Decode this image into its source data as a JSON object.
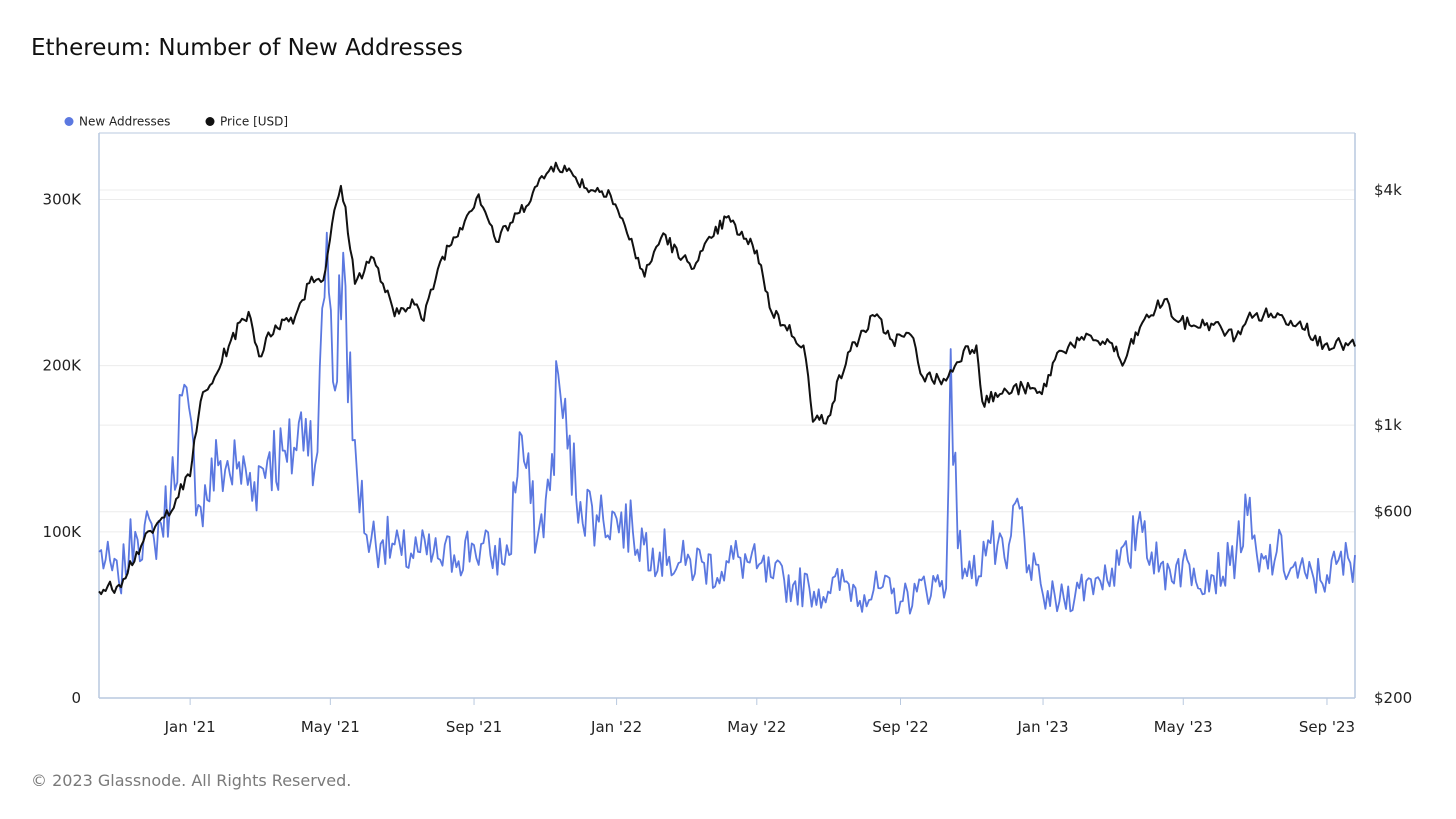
{
  "title": "Ethereum: Number of New Addresses",
  "footer": "© 2023 Glassnode. All Rights Reserved.",
  "colors": {
    "addresses": "#5b78e0",
    "price": "#111111",
    "grid": "#ececec",
    "axis": "#b9c9df"
  },
  "chart_data": {
    "type": "line",
    "title": "Ethereum: Number of New Addresses",
    "legend": [
      {
        "name": "New Addresses",
        "color": "#5b78e0"
      },
      {
        "name": "Price [USD]",
        "color": "#111111"
      }
    ],
    "x_ticks": [
      "Jan '21",
      "May '21",
      "Sep '21",
      "Jan '22",
      "May '22",
      "Sep '22",
      "Jan '23",
      "May '23",
      "Sep '23"
    ],
    "y_left_ticks": [
      "0",
      "100K",
      "200K",
      "300K"
    ],
    "y_left_range": [
      0,
      340000
    ],
    "y_right_ticks": [
      "$200",
      "$600",
      "$1k",
      "$4k"
    ],
    "y_right_scale": "log",
    "y_right_range": [
      200,
      5600
    ],
    "x_range": [
      "2020-10-15",
      "2023-09-25"
    ],
    "series": [
      {
        "name": "New Addresses",
        "axis": "left",
        "points": [
          [
            "2020-10-15",
            88000
          ],
          [
            "2020-11-01",
            70000
          ],
          [
            "2020-11-15",
            100000
          ],
          [
            "2020-12-01",
            96000
          ],
          [
            "2020-12-15",
            118000
          ],
          [
            "2020-12-25",
            182000
          ],
          [
            "2021-01-10",
            115000
          ],
          [
            "2021-01-25",
            140000
          ],
          [
            "2021-02-10",
            138000
          ],
          [
            "2021-02-25",
            130000
          ],
          [
            "2021-03-10",
            148000
          ],
          [
            "2021-03-25",
            142000
          ],
          [
            "2021-04-10",
            168000
          ],
          [
            "2021-04-20",
            148000
          ],
          [
            "2021-04-28",
            280000
          ],
          [
            "2021-05-05",
            185000
          ],
          [
            "2021-05-12",
            268000
          ],
          [
            "2021-05-20",
            155000
          ],
          [
            "2021-06-01",
            98000
          ],
          [
            "2021-06-15",
            95000
          ],
          [
            "2021-07-01",
            86000
          ],
          [
            "2021-07-15",
            88000
          ],
          [
            "2021-08-01",
            84000
          ],
          [
            "2021-08-15",
            86000
          ],
          [
            "2021-09-01",
            92000
          ],
          [
            "2021-09-15",
            86000
          ],
          [
            "2021-10-01",
            86000
          ],
          [
            "2021-10-10",
            160000
          ],
          [
            "2021-10-25",
            95000
          ],
          [
            "2021-11-05",
            125000
          ],
          [
            "2021-11-12",
            195000
          ],
          [
            "2021-11-20",
            150000
          ],
          [
            "2021-12-01",
            118000
          ],
          [
            "2021-12-15",
            110000
          ],
          [
            "2022-01-01",
            108000
          ],
          [
            "2022-01-15",
            100000
          ],
          [
            "2022-02-01",
            90000
          ],
          [
            "2022-02-15",
            85000
          ],
          [
            "2022-03-01",
            80000
          ],
          [
            "2022-03-15",
            82000
          ],
          [
            "2022-04-01",
            76000
          ],
          [
            "2022-04-15",
            85000
          ],
          [
            "2022-05-01",
            78000
          ],
          [
            "2022-05-15",
            72000
          ],
          [
            "2022-06-01",
            68000
          ],
          [
            "2022-06-15",
            66000
          ],
          [
            "2022-07-01",
            64000
          ],
          [
            "2022-07-15",
            70000
          ],
          [
            "2022-08-01",
            62000
          ],
          [
            "2022-08-15",
            66000
          ],
          [
            "2022-09-01",
            58000
          ],
          [
            "2022-09-15",
            64000
          ],
          [
            "2022-10-01",
            70000
          ],
          [
            "2022-10-10",
            66000
          ],
          [
            "2022-10-14",
            210000
          ],
          [
            "2022-10-20",
            90000
          ],
          [
            "2022-11-01",
            72000
          ],
          [
            "2022-11-15",
            95000
          ],
          [
            "2022-12-01",
            78000
          ],
          [
            "2022-12-10",
            120000
          ],
          [
            "2022-12-20",
            80000
          ],
          [
            "2023-01-01",
            62000
          ],
          [
            "2023-01-15",
            58000
          ],
          [
            "2023-02-01",
            66000
          ],
          [
            "2023-02-15",
            72000
          ],
          [
            "2023-03-01",
            78000
          ],
          [
            "2023-03-15",
            82000
          ],
          [
            "2023-03-25",
            112000
          ],
          [
            "2023-04-10",
            76000
          ],
          [
            "2023-04-25",
            80000
          ],
          [
            "2023-05-10",
            78000
          ],
          [
            "2023-05-25",
            74000
          ],
          [
            "2023-06-10",
            80000
          ],
          [
            "2023-06-25",
            110000
          ],
          [
            "2023-07-05",
            76000
          ],
          [
            "2023-07-20",
            88000
          ],
          [
            "2023-08-01",
            78000
          ],
          [
            "2023-08-15",
            72000
          ],
          [
            "2023-09-01",
            74000
          ],
          [
            "2023-09-25",
            86000
          ]
        ]
      },
      {
        "name": "Price [USD]",
        "axis": "right",
        "points": [
          [
            "2020-10-15",
            375
          ],
          [
            "2020-11-01",
            390
          ],
          [
            "2020-11-20",
            490
          ],
          [
            "2020-12-10",
            580
          ],
          [
            "2021-01-01",
            740
          ],
          [
            "2021-01-10",
            1150
          ],
          [
            "2021-01-20",
            1280
          ],
          [
            "2021-02-05",
            1650
          ],
          [
            "2021-02-20",
            1950
          ],
          [
            "2021-03-01",
            1500
          ],
          [
            "2021-03-15",
            1800
          ],
          [
            "2021-04-01",
            1900
          ],
          [
            "2021-04-15",
            2400
          ],
          [
            "2021-04-25",
            2350
          ],
          [
            "2021-05-10",
            4100
          ],
          [
            "2021-05-22",
            2300
          ],
          [
            "2021-06-05",
            2700
          ],
          [
            "2021-06-25",
            1900
          ],
          [
            "2021-07-10",
            2100
          ],
          [
            "2021-07-20",
            1850
          ],
          [
            "2021-08-05",
            2700
          ],
          [
            "2021-08-20",
            3200
          ],
          [
            "2021-09-05",
            3900
          ],
          [
            "2021-09-20",
            2950
          ],
          [
            "2021-10-10",
            3500
          ],
          [
            "2021-10-25",
            4100
          ],
          [
            "2021-11-10",
            4700
          ],
          [
            "2021-11-25",
            4350
          ],
          [
            "2021-12-10",
            4000
          ],
          [
            "2021-12-25",
            4000
          ],
          [
            "2022-01-10",
            3100
          ],
          [
            "2022-01-25",
            2400
          ],
          [
            "2022-02-10",
            3100
          ],
          [
            "2022-02-25",
            2650
          ],
          [
            "2022-03-10",
            2600
          ],
          [
            "2022-03-25",
            3050
          ],
          [
            "2022-04-05",
            3400
          ],
          [
            "2022-04-20",
            3000
          ],
          [
            "2022-05-01",
            2800
          ],
          [
            "2022-05-12",
            2000
          ],
          [
            "2022-05-25",
            1800
          ],
          [
            "2022-06-10",
            1600
          ],
          [
            "2022-06-18",
            1020
          ],
          [
            "2022-07-01",
            1050
          ],
          [
            "2022-07-20",
            1550
          ],
          [
            "2022-08-10",
            1900
          ],
          [
            "2022-08-25",
            1650
          ],
          [
            "2022-09-10",
            1700
          ],
          [
            "2022-09-20",
            1330
          ],
          [
            "2022-10-10",
            1300
          ],
          [
            "2022-10-25",
            1550
          ],
          [
            "2022-11-05",
            1600
          ],
          [
            "2022-11-10",
            1150
          ],
          [
            "2022-11-25",
            1200
          ],
          [
            "2022-12-15",
            1250
          ],
          [
            "2022-12-31",
            1200
          ],
          [
            "2023-01-15",
            1550
          ],
          [
            "2023-02-01",
            1650
          ],
          [
            "2023-02-15",
            1650
          ],
          [
            "2023-03-01",
            1620
          ],
          [
            "2023-03-10",
            1420
          ],
          [
            "2023-03-25",
            1780
          ],
          [
            "2023-04-15",
            2100
          ],
          [
            "2023-04-25",
            1850
          ],
          [
            "2023-05-10",
            1800
          ],
          [
            "2023-05-25",
            1820
          ],
          [
            "2023-06-15",
            1680
          ],
          [
            "2023-06-25",
            1880
          ],
          [
            "2023-07-15",
            1930
          ],
          [
            "2023-08-01",
            1850
          ],
          [
            "2023-08-15",
            1820
          ],
          [
            "2023-08-20",
            1650
          ],
          [
            "2023-09-01",
            1620
          ],
          [
            "2023-09-25",
            1590
          ]
        ]
      }
    ]
  }
}
